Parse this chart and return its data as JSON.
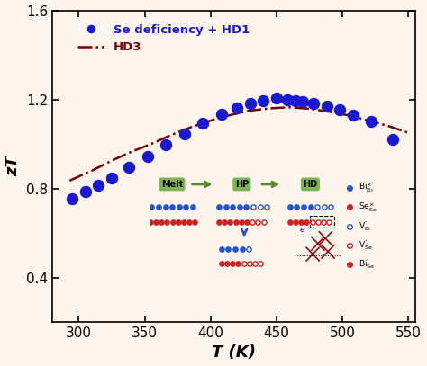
{
  "scatter_T": [
    295,
    305,
    315,
    325,
    338,
    352,
    366,
    380,
    394,
    408,
    420,
    430,
    440,
    450,
    458,
    464,
    470,
    478,
    488,
    498,
    508,
    522,
    538
  ],
  "scatter_zT": [
    0.755,
    0.785,
    0.815,
    0.845,
    0.895,
    0.945,
    0.995,
    1.045,
    1.095,
    1.135,
    1.16,
    1.18,
    1.195,
    1.205,
    1.2,
    1.195,
    1.19,
    1.18,
    1.17,
    1.155,
    1.13,
    1.1,
    1.02
  ],
  "line_T": [
    293,
    310,
    325,
    340,
    355,
    370,
    385,
    400,
    415,
    430,
    445,
    460,
    475,
    490,
    505,
    520,
    535,
    550
  ],
  "line_zT": [
    0.835,
    0.88,
    0.925,
    0.965,
    1.0,
    1.04,
    1.075,
    1.105,
    1.13,
    1.15,
    1.16,
    1.165,
    1.158,
    1.145,
    1.128,
    1.105,
    1.08,
    1.05
  ],
  "scatter_color": "#1a1acc",
  "line_color": "#7a0000",
  "bg_color": "#fdf4ee",
  "xlim": [
    280,
    555
  ],
  "ylim": [
    0.2,
    1.6
  ],
  "yticks": [
    0.4,
    0.8,
    1.2,
    1.6
  ],
  "xticks": [
    300,
    350,
    400,
    450,
    500,
    550
  ],
  "xlabel": "T (K)",
  "ylabel": "zT",
  "legend_scatter_label": "Se deficiency + HD1",
  "legend_line_label": "HD3",
  "inset_bg": "#ccd8e4",
  "inset_box_color": "#7db356",
  "blue_dot": "#2255cc",
  "red_dot": "#cc2222"
}
